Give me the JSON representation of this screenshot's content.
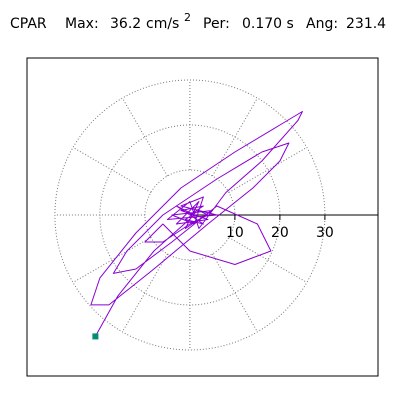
{
  "chart_data": {
    "type": "line",
    "title": {
      "station": "CPAR",
      "max_label": "Max:",
      "max": "36.2",
      "max_unit": "cm/s",
      "max_exp": "2",
      "per_label": "Per:",
      "per": "0.170 s",
      "ang_label": "Ang:",
      "ang": "231.4"
    },
    "series": [
      {
        "color": "#8a00d4",
        "x": [
          0,
          3,
          -2,
          4,
          -3,
          2,
          -1,
          5,
          -4,
          1,
          3,
          -2,
          6,
          -5,
          0,
          2,
          8,
          16,
          24,
          25,
          20,
          10,
          -2,
          -12,
          -20,
          -22,
          -18,
          -8,
          4,
          14,
          20,
          22,
          16,
          6,
          -6,
          -14,
          -17,
          -12,
          -4,
          6,
          15,
          18,
          10,
          0,
          -6,
          -10,
          -6,
          0,
          4,
          2,
          -1,
          3,
          -3,
          1,
          -8,
          -16,
          -21
        ],
        "y": [
          0,
          2,
          1,
          -1,
          -2,
          3,
          -3,
          1,
          0,
          -2,
          4,
          2,
          0,
          -1,
          3,
          -3,
          5,
          12,
          21,
          23,
          20,
          14,
          6,
          -4,
          -14,
          -20,
          -20,
          -12,
          -2,
          6,
          12,
          16,
          14,
          8,
          0,
          -8,
          -13,
          -12,
          -6,
          2,
          -2,
          -8,
          -11,
          -8,
          -2,
          -6,
          -6,
          -2,
          0,
          1,
          -1,
          -2,
          2,
          0,
          -8,
          -18,
          -27
        ]
      }
    ],
    "end_marker": {
      "x": -21,
      "y": -27,
      "color": "#009070"
    },
    "xlim": [
      -36.2,
      41.8
    ],
    "ylim": [
      -35.8,
      34.9
    ],
    "xticks": [
      10,
      20,
      30
    ],
    "grid": "polar"
  }
}
